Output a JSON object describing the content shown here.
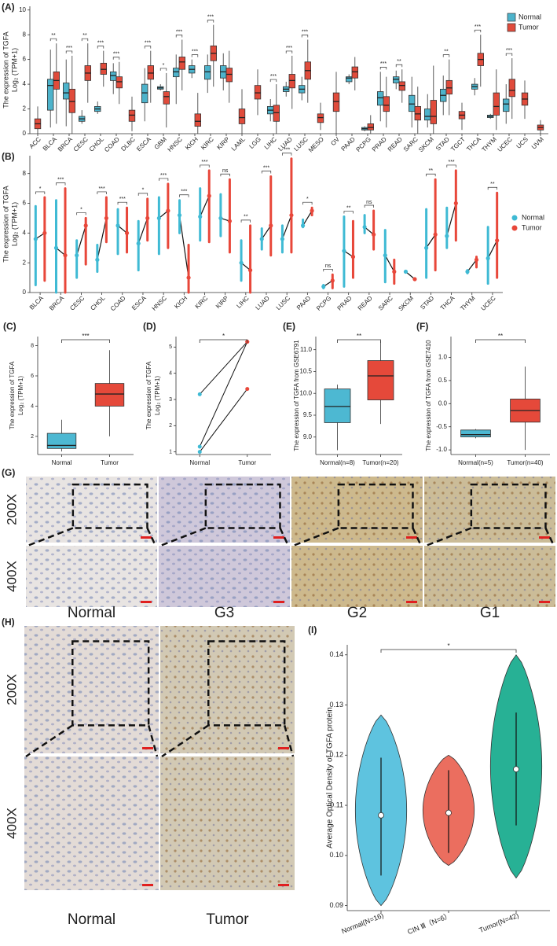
{
  "chart_data": [
    {
      "type": "grouped-box",
      "panel_label": "(A)",
      "ylabel": [
        "The expression of TGFA",
        "Log₂ (TPM+1)"
      ],
      "ylim": [
        0,
        10.3
      ],
      "yticks": [
        0,
        2,
        4,
        6,
        8,
        10
      ],
      "legend": "top-right",
      "categories": [
        "ACC",
        "BLCA",
        "BRCA",
        "CESC",
        "CHOL",
        "COAD",
        "DLBC",
        "ESCA",
        "GBM",
        "HNSC",
        "KICH",
        "KIRC",
        "KIRP",
        "LAML",
        "LGG",
        "LIHC",
        "LUAD",
        "LUSC",
        "MESO",
        "OV",
        "PAAD",
        "PCPG",
        "PRAD",
        "READ",
        "SARC",
        "SKCM",
        "STAD",
        "TGCT",
        "THCA",
        "THYM",
        "UCEC",
        "UCS",
        "UVM"
      ],
      "significance": [
        null,
        "**",
        "***",
        "**",
        "***",
        "***",
        null,
        "***",
        "*",
        "***",
        "***",
        "***",
        null,
        null,
        null,
        "***",
        "***",
        "***",
        null,
        null,
        null,
        null,
        "***",
        "**",
        null,
        null,
        "**",
        null,
        "***",
        null,
        "***",
        null,
        null
      ],
      "series": [
        {
          "name": "Normal",
          "color": "#4db3cb",
          "values": [
            null,
            [
              0.5,
              1.9,
              3.9,
              4.4,
              6.8
            ],
            [
              0.6,
              2.8,
              3.3,
              4.1,
              6
            ],
            [
              0.8,
              1,
              1.2,
              1.4,
              1.9
            ],
            [
              1.6,
              1.8,
              2,
              2.2,
              2.6
            ],
            [
              3.2,
              4.3,
              4.7,
              5,
              5.7
            ],
            null,
            [
              1,
              2.5,
              3.3,
              4,
              5.3
            ],
            [
              3.5,
              3.6,
              3.7,
              3.8,
              4
            ],
            [
              2.4,
              4.6,
              5,
              5.3,
              6.4
            ],
            [
              4.5,
              4.9,
              5.2,
              5.5,
              6
            ],
            [
              3.3,
              4.4,
              5,
              5.5,
              6.4
            ],
            [
              3.5,
              4.5,
              5,
              5.5,
              6.5
            ],
            null,
            null,
            [
              1,
              1.6,
              1.9,
              2.2,
              2.8
            ],
            [
              3,
              3.4,
              3.6,
              3.8,
              4.2
            ],
            [
              2.7,
              3.3,
              3.6,
              3.9,
              4.6
            ],
            null,
            null,
            [
              4,
              4.2,
              4.5,
              4.6,
              4.8
            ],
            [
              0.2,
              0.3,
              0.4,
              0.5,
              0.6
            ],
            [
              1,
              2.3,
              2.9,
              3.4,
              5
            ],
            [
              3.6,
              4.1,
              4.4,
              4.6,
              5.1
            ],
            [
              0.5,
              1.8,
              2.4,
              3.1,
              4.6
            ],
            [
              0.5,
              1.1,
              1.4,
              2,
              3.2
            ],
            [
              1.5,
              2.6,
              3.1,
              3.6,
              4.7
            ],
            null,
            [
              3.1,
              3.6,
              3.8,
              4,
              4.5
            ],
            [
              1.2,
              1.3,
              1.4,
              1.5,
              1.6
            ],
            [
              0.8,
              1.8,
              2.4,
              2.8,
              4
            ],
            null,
            null
          ]
        },
        {
          "name": "Tumor",
          "color": "#e04b3b",
          "values": [
            [
              0,
              0.4,
              0.8,
              1.2,
              2.2
            ],
            [
              0.8,
              3.6,
              4.3,
              5,
              7.3
            ],
            [
              0,
              1.7,
              2.6,
              3.6,
              6.3
            ],
            [
              2.5,
              4.3,
              4.9,
              5.5,
              7.3
            ],
            [
              3.8,
              4.8,
              5.2,
              5.7,
              6.7
            ],
            [
              2.4,
              3.7,
              4.2,
              4.6,
              5.8
            ],
            [
              0.2,
              1,
              1.5,
              1.9,
              3
            ],
            [
              2.5,
              4.4,
              4.9,
              5.5,
              6.7
            ],
            [
              0.5,
              2.4,
              3,
              3.4,
              4.9
            ],
            [
              3.5,
              5.2,
              5.8,
              6.2,
              7.6
            ],
            [
              0,
              0.6,
              1,
              1.6,
              3.3
            ],
            [
              3.8,
              5.9,
              6.5,
              7.1,
              8.8
            ],
            [
              2.5,
              4.2,
              4.8,
              5.3,
              6.7
            ],
            [
              0,
              0.8,
              1.3,
              2,
              3.6
            ],
            [
              1.5,
              2.8,
              3.3,
              3.9,
              5.2
            ],
            [
              0,
              1,
              1.7,
              2.3,
              4
            ],
            [
              2,
              3.7,
              4.3,
              4.8,
              6.3
            ],
            [
              2.5,
              4.4,
              5.1,
              5.8,
              7.6
            ],
            [
              0.3,
              0.9,
              1.3,
              1.6,
              2.5
            ],
            [
              0,
              1.8,
              2.6,
              3.3,
              5
            ],
            [
              3.5,
              4.5,
              5,
              5.4,
              6.2
            ],
            [
              0,
              0.3,
              0.5,
              0.8,
              1.5
            ],
            [
              0.5,
              1.8,
              2.3,
              3,
              4.6
            ],
            [
              2.5,
              3.5,
              3.9,
              4.2,
              5.2
            ],
            [
              0,
              1.1,
              1.6,
              2.2,
              3.8
            ],
            [
              0,
              0.8,
              1.4,
              2.7,
              5.5
            ],
            [
              1.5,
              3.2,
              3.7,
              4.3,
              6
            ],
            [
              0.3,
              1.2,
              1.5,
              1.8,
              2.5
            ],
            [
              3.8,
              5.5,
              6,
              6.5,
              8
            ],
            [
              0.3,
              1.5,
              2.2,
              3.3,
              5.2
            ],
            [
              1.2,
              3,
              3.5,
              4.4,
              6.1
            ],
            [
              1.2,
              2.3,
              2.8,
              3.3,
              4.3
            ],
            [
              0,
              0.3,
              0.5,
              0.7,
              1.1
            ]
          ]
        }
      ]
    },
    {
      "type": "paired-group",
      "panel_label": "(B)",
      "ylabel": [
        "The expression of TGFA",
        "Log₂ (TPM+1)"
      ],
      "ylim": [
        0,
        9.2
      ],
      "yticks": [
        0,
        2,
        4,
        6,
        8
      ],
      "legend": "right",
      "categories": [
        "BLCA",
        "BRCA",
        "CESC",
        "CHOL",
        "COAD",
        "ESCA",
        "HNSC",
        "KICH",
        "KIRC",
        "KIRP",
        "LIHC",
        "LUAD",
        "LUSC",
        "PAAD",
        "PCPG",
        "PRAD",
        "READ",
        "SARC",
        "SKCM",
        "STAD",
        "THCA",
        "THYM",
        "UCEC"
      ],
      "significance": [
        "*",
        "***",
        "*",
        "***",
        "***",
        "*",
        "***",
        "***",
        "***",
        "ns",
        "**",
        "***",
        "***",
        "*",
        "ns",
        "**",
        "ns",
        null,
        null,
        "**",
        "***",
        null,
        "**"
      ],
      "series": [
        {
          "name": "Normal",
          "color": "#3fbad4",
          "values": [
            [
              0.5,
              3.6,
              5.8
            ],
            [
              0,
              3,
              6.2
            ],
            [
              1,
              2.5,
              3.5
            ],
            [
              1.4,
              2.2,
              3.2
            ],
            [
              2.6,
              4.5,
              5.6
            ],
            [
              1.5,
              3.3,
              4.8
            ],
            [
              2.6,
              5,
              6.4
            ],
            [
              4,
              5.2,
              6.2
            ],
            [
              3.5,
              5.1,
              7
            ],
            [
              3.8,
              5,
              6.6
            ],
            [
              0.8,
              2,
              3.5
            ],
            [
              2.9,
              3.6,
              4.3
            ],
            [
              2.7,
              3.6,
              4.5
            ],
            [
              4.4,
              4.5,
              4.9
            ],
            [
              0.3,
              0.4,
              0.5
            ],
            [
              0.4,
              2.8,
              5.1
            ],
            [
              4,
              4.4,
              5.2
            ],
            [
              0.7,
              2.5,
              4.2
            ],
            [
              1.4,
              1.4,
              1.4
            ],
            [
              1,
              3,
              5.6
            ],
            [
              3,
              3.8,
              5.7
            ],
            [
              1.3,
              1.4,
              1.5
            ],
            [
              0.6,
              2.3,
              4.4
            ]
          ]
        },
        {
          "name": "Tumor",
          "color": "#e8473a",
          "values": [
            [
              0.8,
              4,
              6.4
            ],
            [
              0,
              2.5,
              7
            ],
            [
              1.9,
              4.5,
              5
            ],
            [
              3.4,
              5,
              6.4
            ],
            [
              2.7,
              4,
              5.7
            ],
            [
              3.5,
              5,
              6.3
            ],
            [
              3,
              5.5,
              7.3
            ],
            [
              0,
              1,
              3.2
            ],
            [
              3.4,
              6.5,
              8.2
            ],
            [
              2.7,
              4.8,
              7.6
            ],
            [
              0,
              1.5,
              4.5
            ],
            [
              2.5,
              4.5,
              7.8
            ],
            [
              2.7,
              5.2,
              9
            ],
            [
              5.2,
              5.5,
              5.7
            ],
            [
              0.3,
              0.8,
              1.2
            ],
            [
              1,
              2.4,
              4.8
            ],
            [
              2.9,
              3.9,
              5.5
            ],
            [
              0.6,
              1.4,
              2.2
            ],
            [
              0.9,
              0.9,
              0.9
            ],
            [
              1.5,
              3.9,
              7.6
            ],
            [
              3.5,
              6,
              8.2
            ],
            [
              1.7,
              2.2,
              2.4
            ],
            [
              1,
              3.5,
              6.7
            ]
          ]
        }
      ]
    },
    {
      "type": "box",
      "panel_label": "(C)",
      "ylabel": [
        "The expression of TGFA",
        "Log₂ (TPM+1)"
      ],
      "ylim": [
        0.8,
        8.6
      ],
      "yticks": [
        2,
        4,
        6,
        8
      ],
      "significance": "***",
      "categories": [
        "Normal",
        "Tumor"
      ],
      "colors": [
        "#4db8d2",
        "#e5493a"
      ],
      "values": [
        [
          1,
          1.2,
          1.4,
          2.2,
          3.1
        ],
        [
          2,
          4,
          4.8,
          5.5,
          7.7
        ]
      ]
    },
    {
      "type": "paired",
      "panel_label": "(D)",
      "ylabel": [
        "The expression of TGFA",
        "Log₂ (TPM+1)"
      ],
      "ylim": [
        0.9,
        5.4
      ],
      "yticks": [
        1,
        2,
        3,
        4,
        5
      ],
      "significance": "*",
      "categories": [
        "Normal",
        "Tumor"
      ],
      "colors": [
        "#3fbad4",
        "#e8473a"
      ],
      "pairs": [
        [
          3.2,
          5.2
        ],
        [
          1.2,
          5.2
        ],
        [
          1,
          3.4
        ]
      ]
    },
    {
      "type": "box",
      "panel_label": "(E)",
      "ylabel": [
        "The expression of TGFA from GSE6791"
      ],
      "ylim": [
        8.6,
        11.3
      ],
      "yticks": [
        {
          "value": 9,
          "label": "9.0"
        },
        9.5,
        {
          "value": 10,
          "label": "10.0"
        },
        10.5,
        {
          "value": 11,
          "label": "11.0"
        }
      ],
      "significance": "**",
      "categories": [
        "Normal(n=8)",
        "Tumor(n=20)"
      ],
      "colors": [
        "#4db8d2",
        "#e5493a"
      ],
      "values": [
        [
          8.7,
          9.33,
          9.7,
          10.1,
          10.2
        ],
        [
          9.3,
          9.85,
          10.4,
          10.75,
          11.2
        ]
      ]
    },
    {
      "type": "box",
      "panel_label": "(F)",
      "ylabel": [
        "The expression of TGFA from GSE7410"
      ],
      "ylim": [
        -1.1,
        1.45
      ],
      "yticks": [
        {
          "value": -1,
          "label": "-1.0"
        },
        -0.5,
        {
          "value": 0,
          "label": "0.0"
        },
        0.5,
        {
          "value": 1,
          "label": "1.0"
        }
      ],
      "significance": "**",
      "categories": [
        "Normal(n=5)",
        "Tumor(n=40)"
      ],
      "colors": [
        "#4db8d2",
        "#e5493a"
      ],
      "values": [
        [
          -0.75,
          -0.72,
          -0.67,
          -0.57,
          -0.55
        ],
        [
          -1,
          -0.4,
          -0.15,
          0.1,
          0.8
        ]
      ]
    },
    {
      "type": "violin",
      "panel_label": "(I)",
      "ylabel": [
        "Average Optical Density of TGFA protein"
      ],
      "ylim": [
        0.089,
        0.142
      ],
      "yticks": [
        0.09,
        {
          "value": 0.1,
          "label": "0.10"
        },
        0.11,
        0.12,
        0.13,
        0.14
      ],
      "significance": "*",
      "categories": [
        "Normal(N=16)",
        "CIN Ⅲ（N=6）",
        "Tumor(N=42)"
      ],
      "colors": [
        "#5ec3df",
        "#eb6e5f",
        "#27b195"
      ],
      "values": [
        [
          0.09,
          0.096,
          0.108,
          0.1195,
          0.128
        ],
        [
          0.098,
          0.1005,
          0.1085,
          0.117,
          0.12
        ],
        [
          0.0955,
          0.106,
          0.1172,
          0.1285,
          0.14
        ]
      ]
    }
  ],
  "panel_g": {
    "label": "(G)",
    "row_labels": [
      "200X",
      "400X"
    ],
    "column_labels": [
      "Normal",
      "G3",
      "G2",
      "G1"
    ]
  },
  "panel_h": {
    "label": "(H)",
    "row_labels": [
      "200X",
      "400X"
    ],
    "column_labels": [
      "Normal",
      "Tumor"
    ]
  }
}
